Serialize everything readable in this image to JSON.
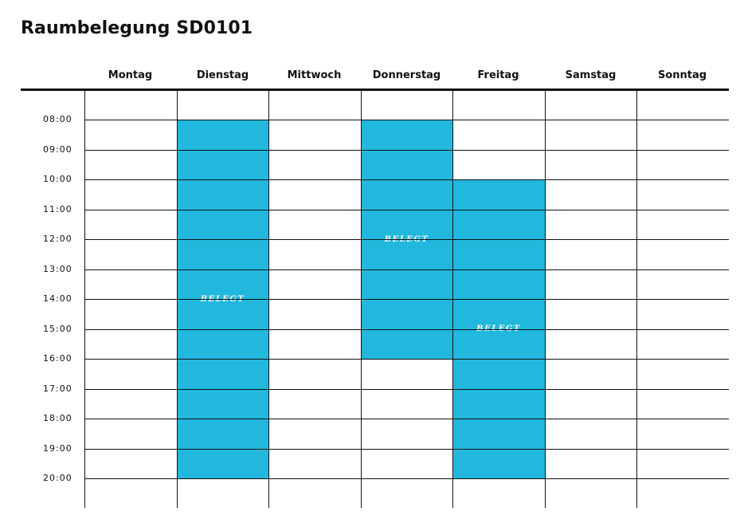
{
  "title": "Raumbelegung SD0101",
  "days": [
    "Montag",
    "Dienstag",
    "Mittwoch",
    "Donnerstag",
    "Freitag",
    "Samstag",
    "Sonntag"
  ],
  "times": [
    "08:00",
    "09:00",
    "10:00",
    "11:00",
    "12:00",
    "13:00",
    "14:00",
    "15:00",
    "16:00",
    "17:00",
    "18:00",
    "19:00",
    "20:00"
  ],
  "bookings": [
    {
      "day": "Dienstag",
      "start": "08:00",
      "end": "20:00",
      "label": "BELEGT"
    },
    {
      "day": "Donnerstag",
      "start": "08:00",
      "end": "16:00",
      "label": "BELEGT"
    },
    {
      "day": "Freitag",
      "start": "10:00",
      "end": "20:00",
      "label": "BELEGT"
    }
  ],
  "colors": {
    "booking": "#22b8de",
    "grid": "#111111"
  }
}
